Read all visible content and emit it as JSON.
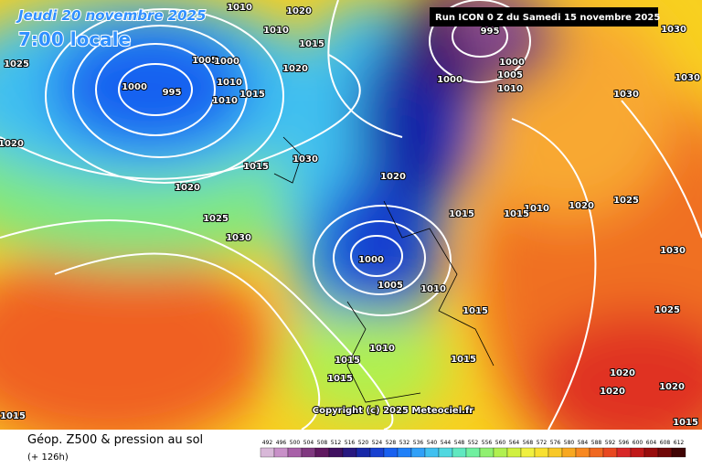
{
  "header": {
    "date": "Jeudi 20 novembre 2025",
    "time": "7:00 locale",
    "run": "Run ICON 0 Z du Samedi 15 novembre 2025"
  },
  "map": {
    "isobar_labels": [
      "1010",
      "1020",
      "995",
      "1030",
      "1025",
      "1005",
      "1000",
      "1015",
      "1010",
      "1020",
      "1000",
      "995",
      "1010",
      "1015",
      "1010",
      "1000",
      "1005",
      "1010",
      "1000",
      "1030",
      "1030",
      "1020",
      "1015",
      "1030",
      "1020",
      "1020",
      "1025",
      "1030",
      "1015",
      "1010",
      "1015",
      "1020",
      "1025",
      "1000",
      "1005",
      "1010",
      "1015",
      "1030",
      "1025",
      "1015",
      "1010",
      "1015",
      "1015",
      "1020",
      "1020",
      "1020",
      "1015",
      "1015"
    ],
    "copyright": "Copyright (c) 2025 Meteociel.fr"
  },
  "footer": {
    "title": "Géop. Z500 & pression au sol",
    "lead": "(+ 126h)"
  },
  "legend": {
    "values": [
      492,
      496,
      500,
      504,
      508,
      512,
      516,
      520,
      524,
      528,
      532,
      536,
      540,
      544,
      548,
      552,
      556,
      560,
      564,
      568,
      572,
      576,
      580,
      584,
      588,
      592,
      596,
      600,
      604,
      608,
      612
    ],
    "colors": [
      "#d8b8d8",
      "#c890c8",
      "#a860a8",
      "#803880",
      "#601860",
      "#401060",
      "#281880",
      "#1828a8",
      "#1840d0",
      "#1860f0",
      "#2080f8",
      "#30a0f8",
      "#40c0f0",
      "#50d8e0",
      "#60e8c0",
      "#70f0a0",
      "#90f070",
      "#b0f050",
      "#d0f040",
      "#f0f040",
      "#f8e030",
      "#f8c828",
      "#f8a820",
      "#f88820",
      "#f06820",
      "#e84820",
      "#d82828",
      "#c01818",
      "#980c0c",
      "#700808",
      "#400404"
    ]
  }
}
